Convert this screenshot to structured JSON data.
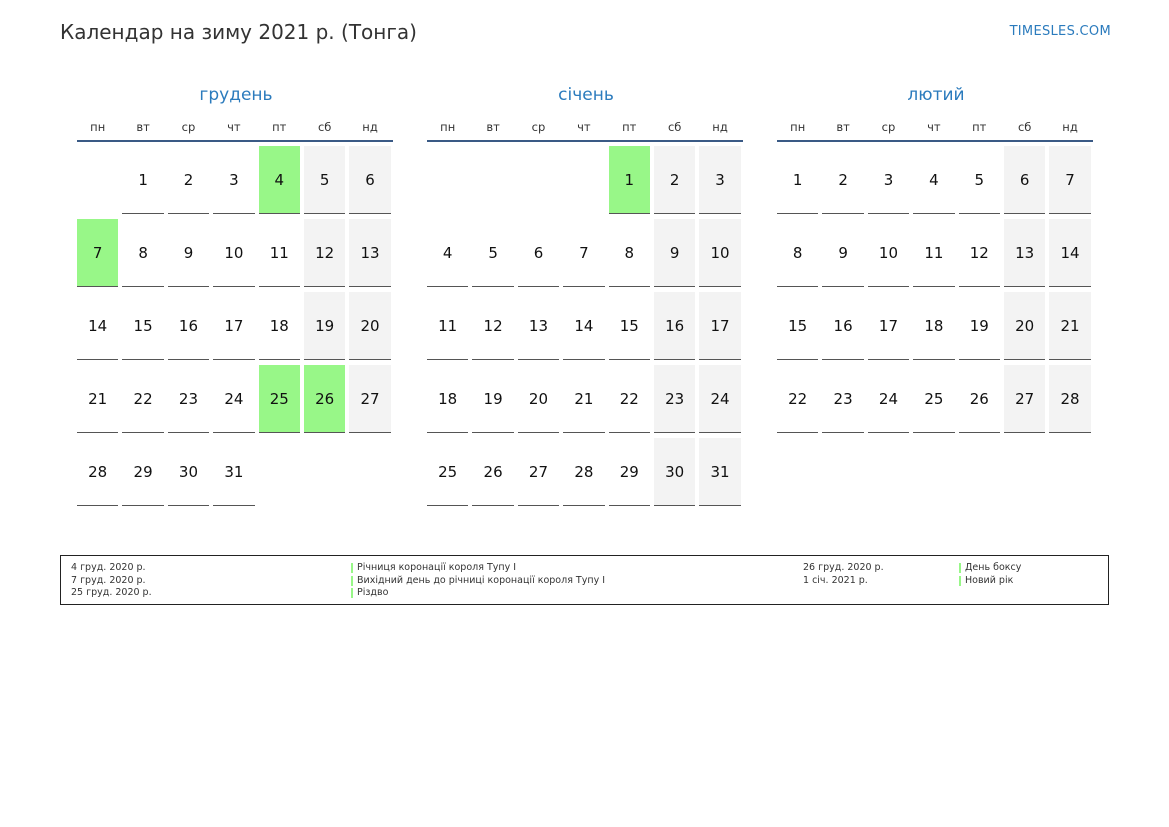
{
  "title": "Календар на зиму 2021 р. (Тонга)",
  "brand": "TIMESLES.COM",
  "colors": {
    "accent": "#2b7bbd",
    "holiday": "#98f788",
    "weekend": "#f3f3f3"
  },
  "weekdays": [
    "пн",
    "вт",
    "ср",
    "чт",
    "пт",
    "сб",
    "нд"
  ],
  "months": [
    {
      "name": "грудень",
      "offset": 1,
      "days": 31,
      "holidays": [
        4,
        7,
        25,
        26
      ]
    },
    {
      "name": "січень",
      "offset": 4,
      "days": 31,
      "holidays": [
        1
      ]
    },
    {
      "name": "лютий",
      "offset": 0,
      "days": 28,
      "holidays": []
    }
  ],
  "legend": {
    "left": [
      {
        "date": "4 груд. 2020 р.",
        "name": "Річниця коронації короля Тупу I"
      },
      {
        "date": "7 груд. 2020 р.",
        "name": "Вихідний день до річниці коронації короля Тупу I"
      },
      {
        "date": "25 груд. 2020 р.",
        "name": "Різдво"
      }
    ],
    "right": [
      {
        "date": "26 груд. 2020 р.",
        "name": "День боксу"
      },
      {
        "date": "1 січ. 2021 р.",
        "name": "Новий рік"
      }
    ]
  }
}
